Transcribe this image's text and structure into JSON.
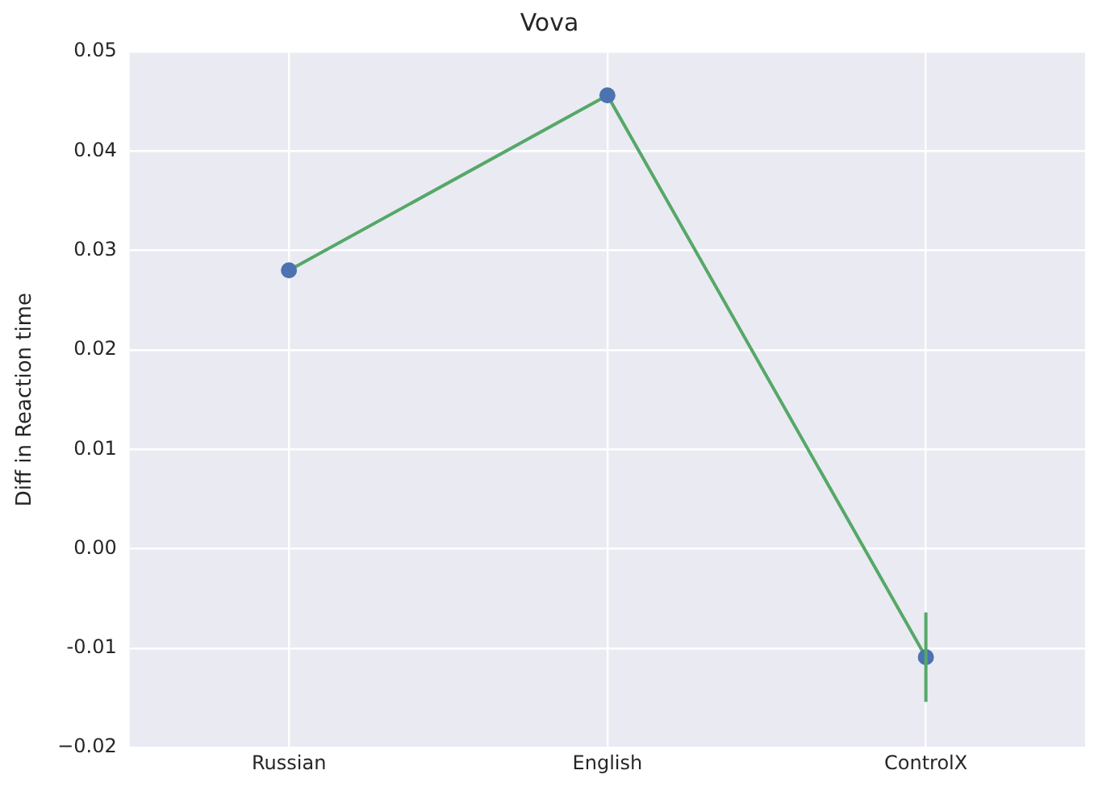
{
  "chart_data": {
    "type": "line",
    "title": "Vova",
    "ylabel": "Diff in Reaction time",
    "categories": [
      "Russian",
      "English",
      "ControlX"
    ],
    "series": [
      {
        "type": "line",
        "color": "#55a868",
        "values": [
          0.028,
          0.0456,
          -0.0109
        ],
        "errors": [
          null,
          null,
          0.0045
        ],
        "marker": "none"
      },
      {
        "type": "scatter",
        "color": "#4c72b0",
        "x": [
          "Russian",
          "English",
          "ControlX"
        ],
        "values": [
          0.028,
          0.0456,
          -0.0109
        ],
        "marker": "circle"
      }
    ],
    "ylim": [
      -0.02,
      0.05
    ],
    "yticks": [
      {
        "value": -0.02,
        "label": "−0.02"
      },
      {
        "value": -0.01,
        "label": "-0.01"
      },
      {
        "value": 0,
        "label": "0.00"
      },
      {
        "value": 0.01,
        "label": "0.01"
      },
      {
        "value": 0.02,
        "label": "0.02"
      },
      {
        "value": 0.03,
        "label": "0.03"
      },
      {
        "value": 0.04,
        "label": "0.04"
      },
      {
        "value": 0.05,
        "label": "0.05"
      }
    ],
    "grid": true,
    "legend": false
  }
}
